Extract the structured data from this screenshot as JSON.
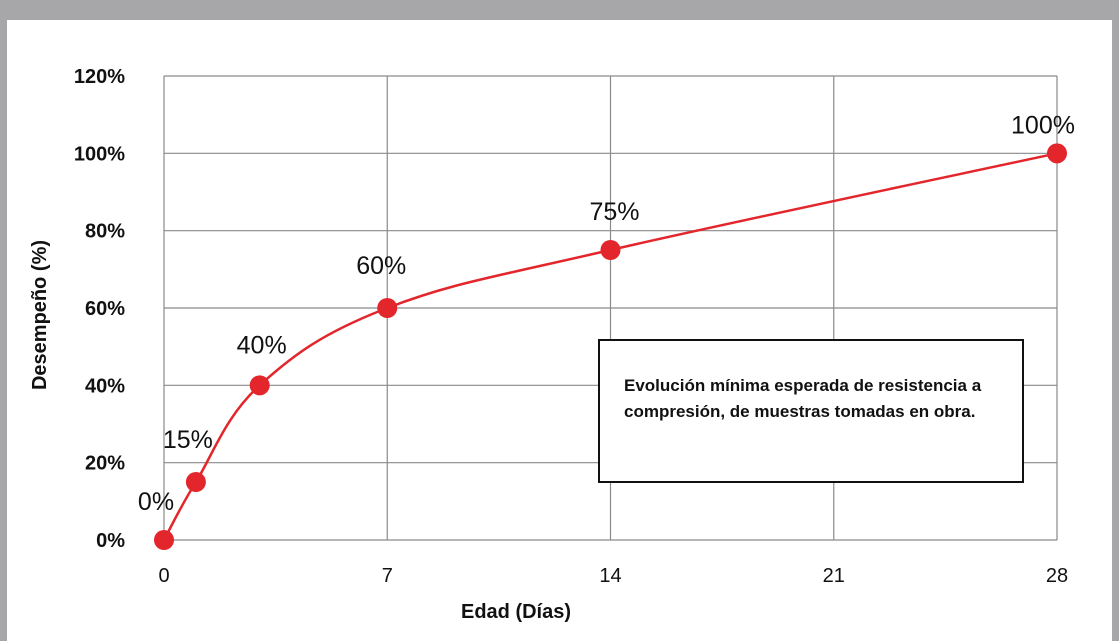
{
  "chart_data": {
    "type": "line",
    "xlabel": "Edad (Días)",
    "ylabel": "Desempeño (%)",
    "xlim": [
      0,
      28
    ],
    "ylim": [
      0,
      120
    ],
    "x_ticks": [
      "0",
      "7",
      "14",
      "21",
      "28"
    ],
    "y_ticks": [
      "0%",
      "20%",
      "40%",
      "60%",
      "80%",
      "100%",
      "120%"
    ],
    "grid": true,
    "series": [
      {
        "color": "#e3262b",
        "x": [
          0,
          1,
          3,
          7,
          14,
          28
        ],
        "y": [
          0,
          15,
          40,
          60,
          75,
          100
        ],
        "labels": [
          "0%",
          "15%",
          "40%",
          "60%",
          "75%",
          "100%"
        ]
      }
    ],
    "annotation": "Evolución mínima esperada de resistencia a compresión, de muestras tomadas en obra."
  }
}
